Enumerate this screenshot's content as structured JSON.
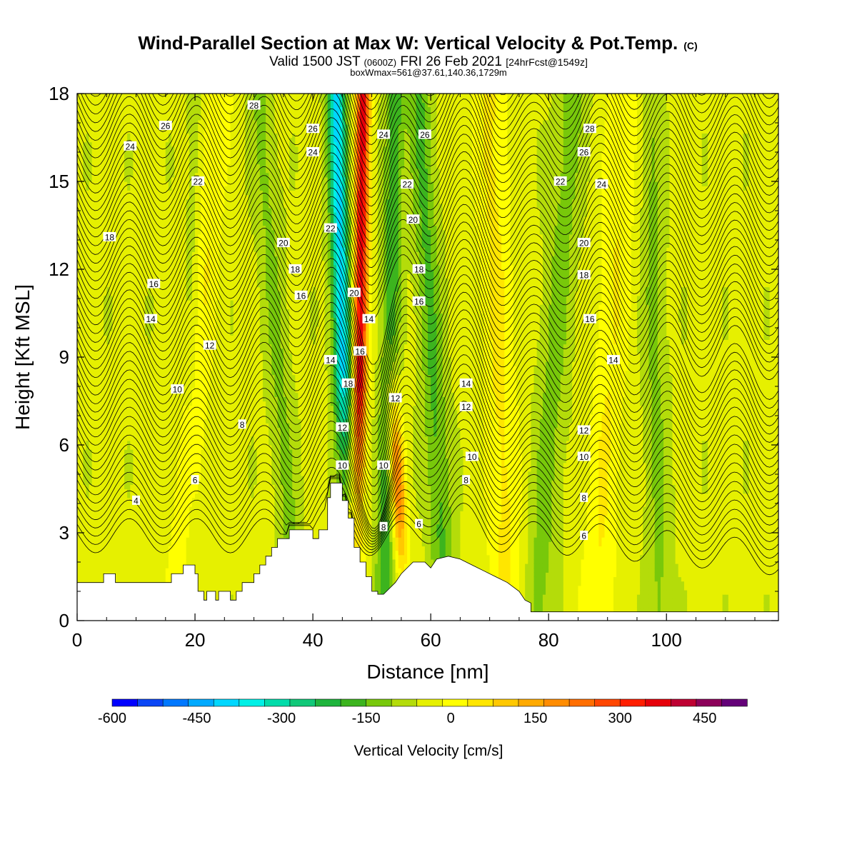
{
  "chart_data": {
    "type": "heatmap",
    "title": "Wind-Parallel Section at Max W: Vertical Velocity & Pot.Temp.",
    "title_mark": "(C)",
    "subtitle_main": "Valid 1500 JST",
    "subtitle_zulu": "(0600Z)",
    "subtitle_date": "FRI 26 Feb 2021",
    "subtitle_fcst": "[24hrFcst@1549z]",
    "subtitle2": "boxWmax=561@37.61,140.36,1729m",
    "xlabel": "Distance [nm]",
    "ylabel": "Height [Kft MSL]",
    "xlim": [
      0,
      119
    ],
    "ylim": [
      0,
      18
    ],
    "x_ticks": [
      0,
      20,
      40,
      60,
      80,
      100
    ],
    "y_ticks": [
      0,
      3,
      6,
      9,
      12,
      15,
      18
    ],
    "colorbar": {
      "label": "Vertical Velocity [cm/s]",
      "range": [
        -600,
        525
      ],
      "step": 50,
      "tick_values": [
        -600,
        -450,
        -300,
        -150,
        0,
        150,
        300,
        450
      ],
      "tick_labels": [
        "-600",
        "-450",
        "-300",
        "-150",
        "0",
        "150",
        "300",
        "450"
      ],
      "colors": [
        "#0000ff",
        "#0a46f5",
        "#0078ff",
        "#00aaff",
        "#00d7ff",
        "#00f0e6",
        "#00dcaa",
        "#10c878",
        "#1eb43c",
        "#3cb41e",
        "#78c80a",
        "#b4dc0a",
        "#e6f000",
        "#ffff00",
        "#ffe600",
        "#ffc800",
        "#ffaa00",
        "#ff8c00",
        "#ff6e00",
        "#ff4600",
        "#ff1e00",
        "#e6000a",
        "#be0032",
        "#8c005a",
        "#640078"
      ]
    },
    "terrain": [
      [
        0,
        1.3
      ],
      [
        4.5,
        1.3
      ],
      [
        4.5,
        1.6
      ],
      [
        6.5,
        1.6
      ],
      [
        6.5,
        1.3
      ],
      [
        16,
        1.3
      ],
      [
        16,
        1.6
      ],
      [
        18,
        1.6
      ],
      [
        18,
        1.9
      ],
      [
        20,
        1.9
      ],
      [
        20,
        1.6
      ],
      [
        20.5,
        1.6
      ],
      [
        20.5,
        1.0
      ],
      [
        21.5,
        1.0
      ],
      [
        21.5,
        0.7
      ],
      [
        22,
        0.7
      ],
      [
        22,
        1.0
      ],
      [
        23.5,
        1.0
      ],
      [
        23.5,
        0.7
      ],
      [
        24,
        0.7
      ],
      [
        24,
        1.0
      ],
      [
        26,
        1.0
      ],
      [
        26,
        0.7
      ],
      [
        27,
        0.7
      ],
      [
        27,
        1.0
      ],
      [
        28,
        1.0
      ],
      [
        28,
        1.3
      ],
      [
        30,
        1.3
      ],
      [
        30,
        1.6
      ],
      [
        31,
        1.6
      ],
      [
        31,
        1.9
      ],
      [
        32,
        1.9
      ],
      [
        32,
        2.2
      ],
      [
        33,
        2.2
      ],
      [
        33,
        2.5
      ],
      [
        34,
        2.5
      ],
      [
        34,
        2.8
      ],
      [
        36,
        2.8
      ],
      [
        36,
        3.1
      ],
      [
        40,
        3.1
      ],
      [
        40,
        2.8
      ],
      [
        41,
        2.8
      ],
      [
        41,
        3.1
      ],
      [
        42.5,
        3.1
      ],
      [
        42.5,
        4.2
      ],
      [
        43,
        4.2
      ],
      [
        43,
        4.7
      ],
      [
        45,
        4.7
      ],
      [
        45,
        4.1
      ],
      [
        46,
        4.1
      ],
      [
        46,
        3.5
      ],
      [
        47,
        3.5
      ],
      [
        47,
        2.5
      ],
      [
        48,
        2.5
      ],
      [
        48,
        2.0
      ],
      [
        49,
        2.0
      ],
      [
        49,
        1.5
      ],
      [
        50,
        1.5
      ],
      [
        50,
        1.0
      ],
      [
        51,
        1.0
      ],
      [
        51,
        0.9
      ],
      [
        52,
        0.9
      ],
      [
        53,
        1.1
      ],
      [
        54,
        1.3
      ],
      [
        55,
        1.6
      ],
      [
        57,
        2.0
      ],
      [
        59,
        2.0
      ],
      [
        60,
        1.8
      ],
      [
        61,
        2.1
      ],
      [
        63,
        2.2
      ],
      [
        65,
        2.1
      ],
      [
        67,
        1.9
      ],
      [
        69,
        1.7
      ],
      [
        71,
        1.5
      ],
      [
        73,
        1.3
      ],
      [
        75,
        1.0
      ],
      [
        76,
        0.7
      ],
      [
        77,
        0.6
      ],
      [
        77,
        0.3
      ],
      [
        119,
        0.3
      ]
    ],
    "potential_temperature_labels": [
      {
        "value": "4",
        "x": 10,
        "y": 4.1
      },
      {
        "value": "6",
        "x": 20,
        "y": 4.8
      },
      {
        "value": "8",
        "x": 28,
        "y": 6.7
      },
      {
        "value": "10",
        "x": 17,
        "y": 7.9
      },
      {
        "value": "12",
        "x": 22.5,
        "y": 9.4
      },
      {
        "value": "14",
        "x": 12.5,
        "y": 10.3
      },
      {
        "value": "16",
        "x": 13,
        "y": 11.5
      },
      {
        "value": "18",
        "x": 5.5,
        "y": 13.1
      },
      {
        "value": "20",
        "x": 35,
        "y": 12.9
      },
      {
        "value": "18",
        "x": 37,
        "y": 12.0
      },
      {
        "value": "16",
        "x": 38,
        "y": 11.1
      },
      {
        "value": "22",
        "x": 20.5,
        "y": 15.0
      },
      {
        "value": "24",
        "x": 9,
        "y": 16.2
      },
      {
        "value": "26",
        "x": 15,
        "y": 16.9
      },
      {
        "value": "28",
        "x": 30,
        "y": 17.6
      },
      {
        "value": "26",
        "x": 40,
        "y": 16.8
      },
      {
        "value": "24",
        "x": 40,
        "y": 16.0
      },
      {
        "value": "22",
        "x": 43,
        "y": 13.4
      },
      {
        "value": "20",
        "x": 47,
        "y": 11.2
      },
      {
        "value": "14",
        "x": 49.5,
        "y": 10.3
      },
      {
        "value": "16",
        "x": 48,
        "y": 9.2
      },
      {
        "value": "14",
        "x": 43,
        "y": 8.9
      },
      {
        "value": "18",
        "x": 46,
        "y": 8.1
      },
      {
        "value": "12",
        "x": 45,
        "y": 6.6
      },
      {
        "value": "10",
        "x": 45,
        "y": 5.3
      },
      {
        "value": "12",
        "x": 54,
        "y": 7.6
      },
      {
        "value": "10",
        "x": 52,
        "y": 5.3
      },
      {
        "value": "8",
        "x": 52,
        "y": 3.2
      },
      {
        "value": "6",
        "x": 58,
        "y": 3.3
      },
      {
        "value": "24",
        "x": 52,
        "y": 16.6
      },
      {
        "value": "26",
        "x": 59,
        "y": 16.6
      },
      {
        "value": "22",
        "x": 56,
        "y": 14.9
      },
      {
        "value": "20",
        "x": 57,
        "y": 13.7
      },
      {
        "value": "18",
        "x": 58,
        "y": 12.0
      },
      {
        "value": "16",
        "x": 58,
        "y": 10.9
      },
      {
        "value": "14",
        "x": 66,
        "y": 8.1
      },
      {
        "value": "12",
        "x": 66,
        "y": 7.3
      },
      {
        "value": "10",
        "x": 67,
        "y": 5.6
      },
      {
        "value": "8",
        "x": 66,
        "y": 4.8
      },
      {
        "value": "28",
        "x": 87,
        "y": 16.8
      },
      {
        "value": "26",
        "x": 86,
        "y": 16.0
      },
      {
        "value": "22",
        "x": 82,
        "y": 15.0
      },
      {
        "value": "24",
        "x": 89,
        "y": 14.9
      },
      {
        "value": "20",
        "x": 86,
        "y": 12.9
      },
      {
        "value": "18",
        "x": 86,
        "y": 11.8
      },
      {
        "value": "16",
        "x": 87,
        "y": 10.3
      },
      {
        "value": "14",
        "x": 91,
        "y": 8.9
      },
      {
        "value": "12",
        "x": 86,
        "y": 6.5
      },
      {
        "value": "10",
        "x": 86,
        "y": 5.6
      },
      {
        "value": "8",
        "x": 86,
        "y": 4.2
      },
      {
        "value": "6",
        "x": 86,
        "y": 2.9
      }
    ],
    "vertical_velocity_bands": [
      {
        "name": "main-updraft",
        "w": 480,
        "x_top": 48.5,
        "x_bot": 47.5,
        "half_width": 1.2
      },
      {
        "name": "main-downdraft",
        "w": -380,
        "x_top": 44,
        "x_bot": 46,
        "half_width": 1.5
      },
      {
        "name": "lee-updraft",
        "w": 320,
        "x_top": 51,
        "x_bot": 55.5,
        "half_width": 1.3
      },
      {
        "name": "lee-downdraft-1",
        "w": -150,
        "x_top": 54,
        "x_bot": 52,
        "half_width": 1.6
      },
      {
        "name": "lee-downdraft-2",
        "w": -120,
        "x_top": 58,
        "x_bot": 62.5,
        "half_width": 2.0
      },
      {
        "name": "lee-downdraft-3",
        "w": -80,
        "x_top": 84,
        "x_bot": 78,
        "half_width": 2.5
      },
      {
        "name": "far-downdraft",
        "w": -70,
        "x_top": 97,
        "x_bot": 99,
        "half_width": 2.0
      },
      {
        "name": "upstream-downdraft",
        "w": -70,
        "x_top": 31,
        "x_bot": 37,
        "half_width": 2.0
      },
      {
        "name": "upstream-weak",
        "w": -50,
        "x_top": 20,
        "x_bot": 19,
        "half_width": 1.3
      },
      {
        "name": "upstream-updraft",
        "w": 90,
        "x_top": 24,
        "x_bot": 17,
        "half_width": 2.5
      },
      {
        "name": "lee-updraft-2",
        "w": 100,
        "x_top": 70,
        "x_bot": 73,
        "half_width": 3.0
      },
      {
        "name": "far-updraft",
        "w": 90,
        "x_top": 93,
        "x_bot": 88,
        "half_width": 3.0
      }
    ]
  }
}
